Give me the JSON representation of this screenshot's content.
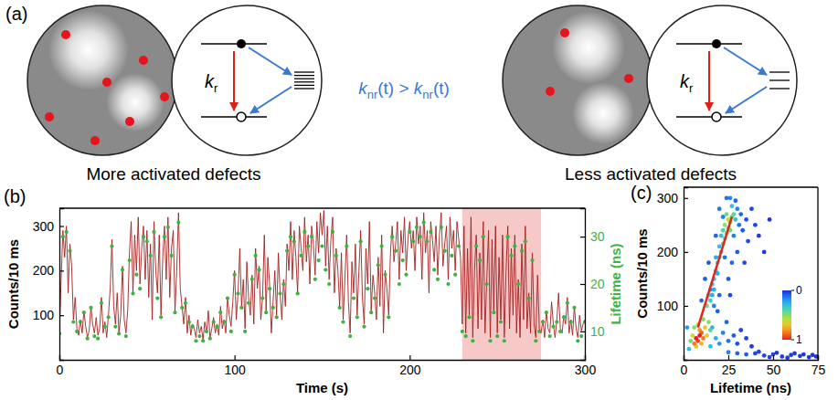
{
  "diagram": {
    "label": "(a)",
    "panels": [
      {
        "caption": "More activated defects",
        "defects": 7,
        "trap_levels": 6
      },
      {
        "caption": "Less activated defects",
        "defects": 3,
        "trap_levels": 3
      }
    ],
    "radiative_rate": {
      "symbol": "k",
      "subscript": "r"
    },
    "comparison": {
      "symbol": "k",
      "subscript": "nr",
      "argument": "(t)",
      "operator": ">"
    }
  },
  "chart_data": [
    {
      "type": "line",
      "label": "(b)",
      "xlabel": "Time (s)",
      "ylabel": "Counts/10 ms",
      "y2label": "Lifetime (ns)",
      "xlim": [
        0,
        300
      ],
      "xticks": [
        0,
        100,
        200,
        300
      ],
      "ylim": [
        0,
        340
      ],
      "yticks": [
        100,
        200,
        300
      ],
      "y2lim": [
        4,
        36
      ],
      "y2ticks": [
        10,
        20,
        30
      ],
      "shaded_x": [
        230,
        275
      ],
      "x": [
        0,
        1,
        2,
        3,
        4,
        5,
        6,
        7,
        8,
        9,
        10,
        11,
        12,
        13,
        14,
        15,
        16,
        17,
        18,
        19,
        20,
        21,
        22,
        23,
        24,
        25,
        26,
        27,
        28,
        29,
        30,
        31,
        32,
        33,
        34,
        35,
        36,
        37,
        38,
        39,
        40,
        41,
        42,
        43,
        44,
        45,
        46,
        47,
        48,
        49,
        50,
        51,
        52,
        53,
        54,
        55,
        56,
        57,
        58,
        59,
        60,
        61,
        62,
        63,
        64,
        65,
        66,
        67,
        68,
        69,
        70,
        71,
        72,
        73,
        74,
        75,
        76,
        77,
        78,
        79,
        80,
        81,
        82,
        83,
        84,
        85,
        86,
        87,
        88,
        89,
        90,
        91,
        92,
        93,
        94,
        95,
        96,
        97,
        98,
        99,
        100,
        101,
        102,
        103,
        104,
        105,
        106,
        107,
        108,
        109,
        110,
        111,
        112,
        113,
        114,
        115,
        116,
        117,
        118,
        119,
        120,
        121,
        122,
        123,
        124,
        125,
        126,
        127,
        128,
        129,
        130,
        131,
        132,
        133,
        134,
        135,
        136,
        137,
        138,
        139,
        140,
        141,
        142,
        143,
        144,
        145,
        146,
        147,
        148,
        149,
        150,
        151,
        152,
        153,
        154,
        155,
        156,
        157,
        158,
        159,
        160,
        161,
        162,
        163,
        164,
        165,
        166,
        167,
        168,
        169,
        170,
        171,
        172,
        173,
        174,
        175,
        176,
        177,
        178,
        179,
        180,
        181,
        182,
        183,
        184,
        185,
        186,
        187,
        188,
        189,
        190,
        191,
        192,
        193,
        194,
        195,
        196,
        197,
        198,
        199,
        200,
        201,
        202,
        203,
        204,
        205,
        206,
        207,
        208,
        209,
        210,
        211,
        212,
        213,
        214,
        215,
        216,
        217,
        218,
        219,
        220,
        221,
        222,
        223,
        224,
        225,
        226,
        227,
        228,
        229,
        230,
        231,
        232,
        233,
        234,
        235,
        236,
        237,
        238,
        239,
        240,
        241,
        242,
        243,
        244,
        245,
        246,
        247,
        248,
        249,
        250,
        251,
        252,
        253,
        254,
        255,
        256,
        257,
        258,
        259,
        260,
        261,
        262,
        263,
        264,
        265,
        266,
        267,
        268,
        269,
        270,
        271,
        272,
        273,
        274,
        275,
        276,
        277,
        278,
        279,
        280,
        281,
        282,
        283,
        284,
        285,
        286,
        287,
        288,
        289,
        290,
        291,
        292,
        293,
        294,
        295,
        296,
        297,
        298,
        299,
        300
      ],
      "series": [
        {
          "color": "#a3201f",
          "values": [
            60,
            180,
            290,
            230,
            300,
            150,
            260,
            210,
            90,
            140,
            70,
            55,
            90,
            60,
            110,
            75,
            50,
            65,
            120,
            80,
            60,
            95,
            55,
            70,
            140,
            60,
            85,
            50,
            100,
            160,
            270,
            120,
            80,
            150,
            60,
            100,
            210,
            90,
            60,
            110,
            240,
            310,
            150,
            280,
            200,
            320,
            170,
            250,
            300,
            180,
            290,
            140,
            260,
            90,
            310,
            200,
            150,
            280,
            100,
            230,
            300,
            180,
            320,
            140,
            250,
            290,
            110,
            200,
            330,
            160,
            120,
            80,
            140,
            60,
            100,
            55,
            80,
            70,
            50,
            90,
            60,
            75,
            45,
            85,
            60,
            110,
            50,
            70,
            95,
            60,
            80,
            55,
            120,
            70,
            90,
            60,
            140,
            100,
            75,
            130,
            200,
            90,
            150,
            250,
            120,
            180,
            70,
            220,
            140,
            100,
            190,
            80,
            250,
            160,
            210,
            90,
            140,
            280,
            110,
            230,
            170,
            60,
            130,
            200,
            100,
            240,
            150,
            90,
            180,
            120,
            260,
            200,
            310,
            180,
            290,
            230,
            150,
            300,
            250,
            200,
            320,
            220,
            280,
            170,
            300,
            260,
            190,
            310,
            240,
            330,
            280,
            335,
            210,
            300,
            180,
            270,
            320,
            150,
            250,
            200,
            120,
            240,
            90,
            180,
            280,
            130,
            60,
            220,
            150,
            260,
            100,
            200,
            290,
            140,
            80,
            250,
            170,
            310,
            110,
            190,
            150,
            90,
            230,
            120,
            280,
            60,
            200,
            160,
            100,
            240,
            300,
            220,
            260,
            310,
            180,
            290,
            240,
            320,
            200,
            270,
            310,
            250,
            290,
            200,
            320,
            260,
            300,
            180,
            330,
            240,
            290,
            150,
            310,
            270,
            220,
            300,
            190,
            280,
            330,
            210,
            260,
            300,
            180,
            320,
            250,
            290,
            200,
            310,
            270,
            230,
            80,
            300,
            60,
            250,
            100,
            320,
            50,
            200,
            280,
            70,
            240,
            90,
            310,
            60,
            180,
            290,
            50,
            270,
            110,
            300,
            60,
            230,
            90,
            280,
            50,
            200,
            300,
            70,
            250,
            100,
            280,
            60,
            180,
            50,
            260,
            90,
            300,
            70,
            150,
            60,
            240,
            80,
            50,
            190,
            70,
            60,
            90,
            50,
            110,
            70,
            60,
            130,
            80,
            50,
            90,
            150,
            70,
            60,
            100,
            80,
            140,
            60,
            90,
            55,
            120,
            70,
            50,
            100,
            65,
            80,
            90
          ]
        },
        {
          "type": "scatter",
          "axis": "y2",
          "color": "#3fb23f",
          "x": [
            0,
            2,
            4,
            6,
            8,
            10,
            12,
            14,
            16,
            18,
            20,
            22,
            24,
            26,
            28,
            30,
            32,
            34,
            36,
            38,
            40,
            42,
            44,
            46,
            48,
            50,
            52,
            54,
            56,
            58,
            60,
            62,
            64,
            66,
            68,
            70,
            72,
            74,
            76,
            78,
            80,
            82,
            84,
            86,
            88,
            90,
            92,
            94,
            96,
            98,
            100,
            102,
            104,
            106,
            108,
            110,
            112,
            114,
            116,
            118,
            120,
            122,
            124,
            126,
            128,
            130,
            132,
            134,
            136,
            138,
            140,
            142,
            144,
            146,
            148,
            150,
            152,
            154,
            156,
            158,
            160,
            162,
            164,
            166,
            168,
            170,
            172,
            174,
            176,
            178,
            180,
            182,
            184,
            186,
            188,
            190,
            192,
            194,
            196,
            198,
            200,
            202,
            204,
            206,
            208,
            210,
            212,
            214,
            216,
            218,
            220,
            222,
            224,
            226,
            228,
            230,
            232,
            234,
            236,
            238,
            240,
            242,
            244,
            246,
            248,
            250,
            252,
            254,
            256,
            258,
            260,
            262,
            264,
            266,
            268,
            270,
            272,
            274,
            276,
            278,
            280,
            282,
            284,
            286,
            288,
            290,
            292,
            294,
            296,
            298,
            300
          ],
          "values": [
            9.5,
            30,
            31,
            27,
            12,
            10,
            12,
            14,
            8.5,
            15,
            9,
            8.5,
            16,
            11,
            13,
            28,
            11,
            9.5,
            23,
            9,
            25,
            18,
            22,
            19,
            30,
            29,
            26,
            31,
            17,
            13,
            30,
            32,
            26,
            14,
            33,
            15,
            16,
            12,
            11,
            8,
            9,
            8,
            10,
            8.5,
            12,
            11,
            14,
            12,
            17,
            10,
            22,
            18,
            15,
            10,
            16,
            21,
            26,
            23,
            17,
            14,
            19,
            15,
            13,
            18,
            20,
            27,
            30,
            29,
            18,
            26,
            31,
            28,
            30,
            21,
            25,
            28,
            23,
            20,
            31,
            26,
            15,
            12,
            28,
            9,
            17,
            13,
            29,
            11,
            19,
            14,
            17,
            24,
            28,
            22,
            13,
            30,
            27,
            20,
            25,
            22,
            31,
            29,
            32,
            30,
            33,
            29,
            31,
            23,
            21,
            32,
            27,
            20,
            26,
            22,
            28,
            10,
            9,
            13,
            8,
            28,
            25,
            30,
            20,
            8,
            14,
            9,
            12,
            8,
            30,
            26,
            28,
            20,
            27,
            29,
            17,
            25,
            8,
            10,
            12,
            14,
            9,
            11,
            12,
            10,
            13,
            16,
            12,
            15,
            8,
            9,
            12
          ]
        }
      ]
    },
    {
      "type": "scatter",
      "label": "(c)",
      "xlabel": "Lifetime (ns)",
      "ylabel": "Counts/10 ms",
      "xlim": [
        0,
        75
      ],
      "xticks": [
        0,
        25,
        50,
        75
      ],
      "ylim": [
        0,
        320
      ],
      "yticks": [
        100,
        200,
        300
      ],
      "x": [
        40,
        45,
        50,
        55,
        60,
        65,
        70,
        74,
        42,
        48,
        52,
        58,
        62,
        67,
        72,
        35,
        30,
        25,
        18,
        20,
        22,
        25,
        28,
        30,
        16,
        24,
        32,
        35,
        38,
        15,
        3,
        2,
        26,
        30,
        31,
        20,
        28,
        32,
        24,
        29,
        33,
        22,
        18,
        14,
        12,
        10,
        35,
        36,
        38,
        30,
        34,
        27,
        25,
        20,
        40,
        42,
        45,
        48,
        23,
        17,
        19,
        26,
        13,
        14,
        15,
        16,
        17,
        18,
        19,
        20,
        21,
        22,
        23,
        24,
        25,
        26,
        27,
        25,
        23,
        26,
        28,
        24,
        22,
        27,
        29,
        21,
        20,
        18,
        17,
        19,
        16,
        15,
        4,
        6,
        14,
        15,
        11,
        8,
        12,
        7,
        13,
        5,
        10,
        9,
        6,
        11,
        10,
        8,
        9,
        7
      ],
      "values": [
        12,
        8,
        10,
        6,
        9,
        7,
        5,
        6,
        15,
        5,
        13,
        4,
        12,
        10,
        9,
        10,
        12,
        14,
        40,
        30,
        50,
        35,
        45,
        30,
        60,
        70,
        55,
        40,
        25,
        25,
        20,
        60,
        300,
        280,
        250,
        280,
        230,
        270,
        300,
        295,
        240,
        265,
        230,
        180,
        150,
        110,
        260,
        220,
        280,
        200,
        180,
        180,
        150,
        120,
        250,
        230,
        200,
        260,
        190,
        100,
        90,
        120,
        100,
        120,
        110,
        140,
        150,
        165,
        180,
        190,
        200,
        215,
        225,
        235,
        245,
        255,
        265,
        260,
        250,
        240,
        270,
        270,
        240,
        285,
        260,
        230,
        210,
        190,
        130,
        160,
        120,
        130,
        35,
        60,
        70,
        55,
        75,
        65,
        60,
        25,
        45,
        45,
        30,
        55,
        30,
        40,
        50,
        35,
        45,
        40
      ],
      "density": [
        0.05,
        0.05,
        0.04,
        0.04,
        0.03,
        0.03,
        0.02,
        0.02,
        0.04,
        0.04,
        0.03,
        0.03,
        0.03,
        0.02,
        0.02,
        0.08,
        0.1,
        0.15,
        0.25,
        0.2,
        0.15,
        0.12,
        0.08,
        0.06,
        0.25,
        0.1,
        0.05,
        0.04,
        0.03,
        0.3,
        0.3,
        0.2,
        0.15,
        0.15,
        0.12,
        0.12,
        0.15,
        0.1,
        0.12,
        0.1,
        0.08,
        0.15,
        0.1,
        0.08,
        0.08,
        0.1,
        0.06,
        0.05,
        0.05,
        0.08,
        0.05,
        0.1,
        0.08,
        0.1,
        0.04,
        0.03,
        0.03,
        0.02,
        0.12,
        0.15,
        0.08,
        0.05,
        0.45,
        0.35,
        0.35,
        0.3,
        0.3,
        0.3,
        0.35,
        0.35,
        0.4,
        0.45,
        0.5,
        0.55,
        0.55,
        0.5,
        0.5,
        0.6,
        0.5,
        0.45,
        0.4,
        0.45,
        0.4,
        0.3,
        0.3,
        0.3,
        0.3,
        0.25,
        0.25,
        0.25,
        0.25,
        0.2,
        0.45,
        0.5,
        0.5,
        0.4,
        0.5,
        0.6,
        0.7,
        0.7,
        0.65,
        0.6,
        0.75,
        0.8,
        0.85,
        0.85,
        0.9,
        0.95,
        1,
        1
      ],
      "colorbar": {
        "range": [
          0,
          1
        ],
        "ticks": [
          0,
          1
        ]
      },
      "fit": {
        "x": [
          8,
          27
        ],
        "values": [
          60,
          265
        ],
        "color": "#e3241c"
      }
    }
  ]
}
